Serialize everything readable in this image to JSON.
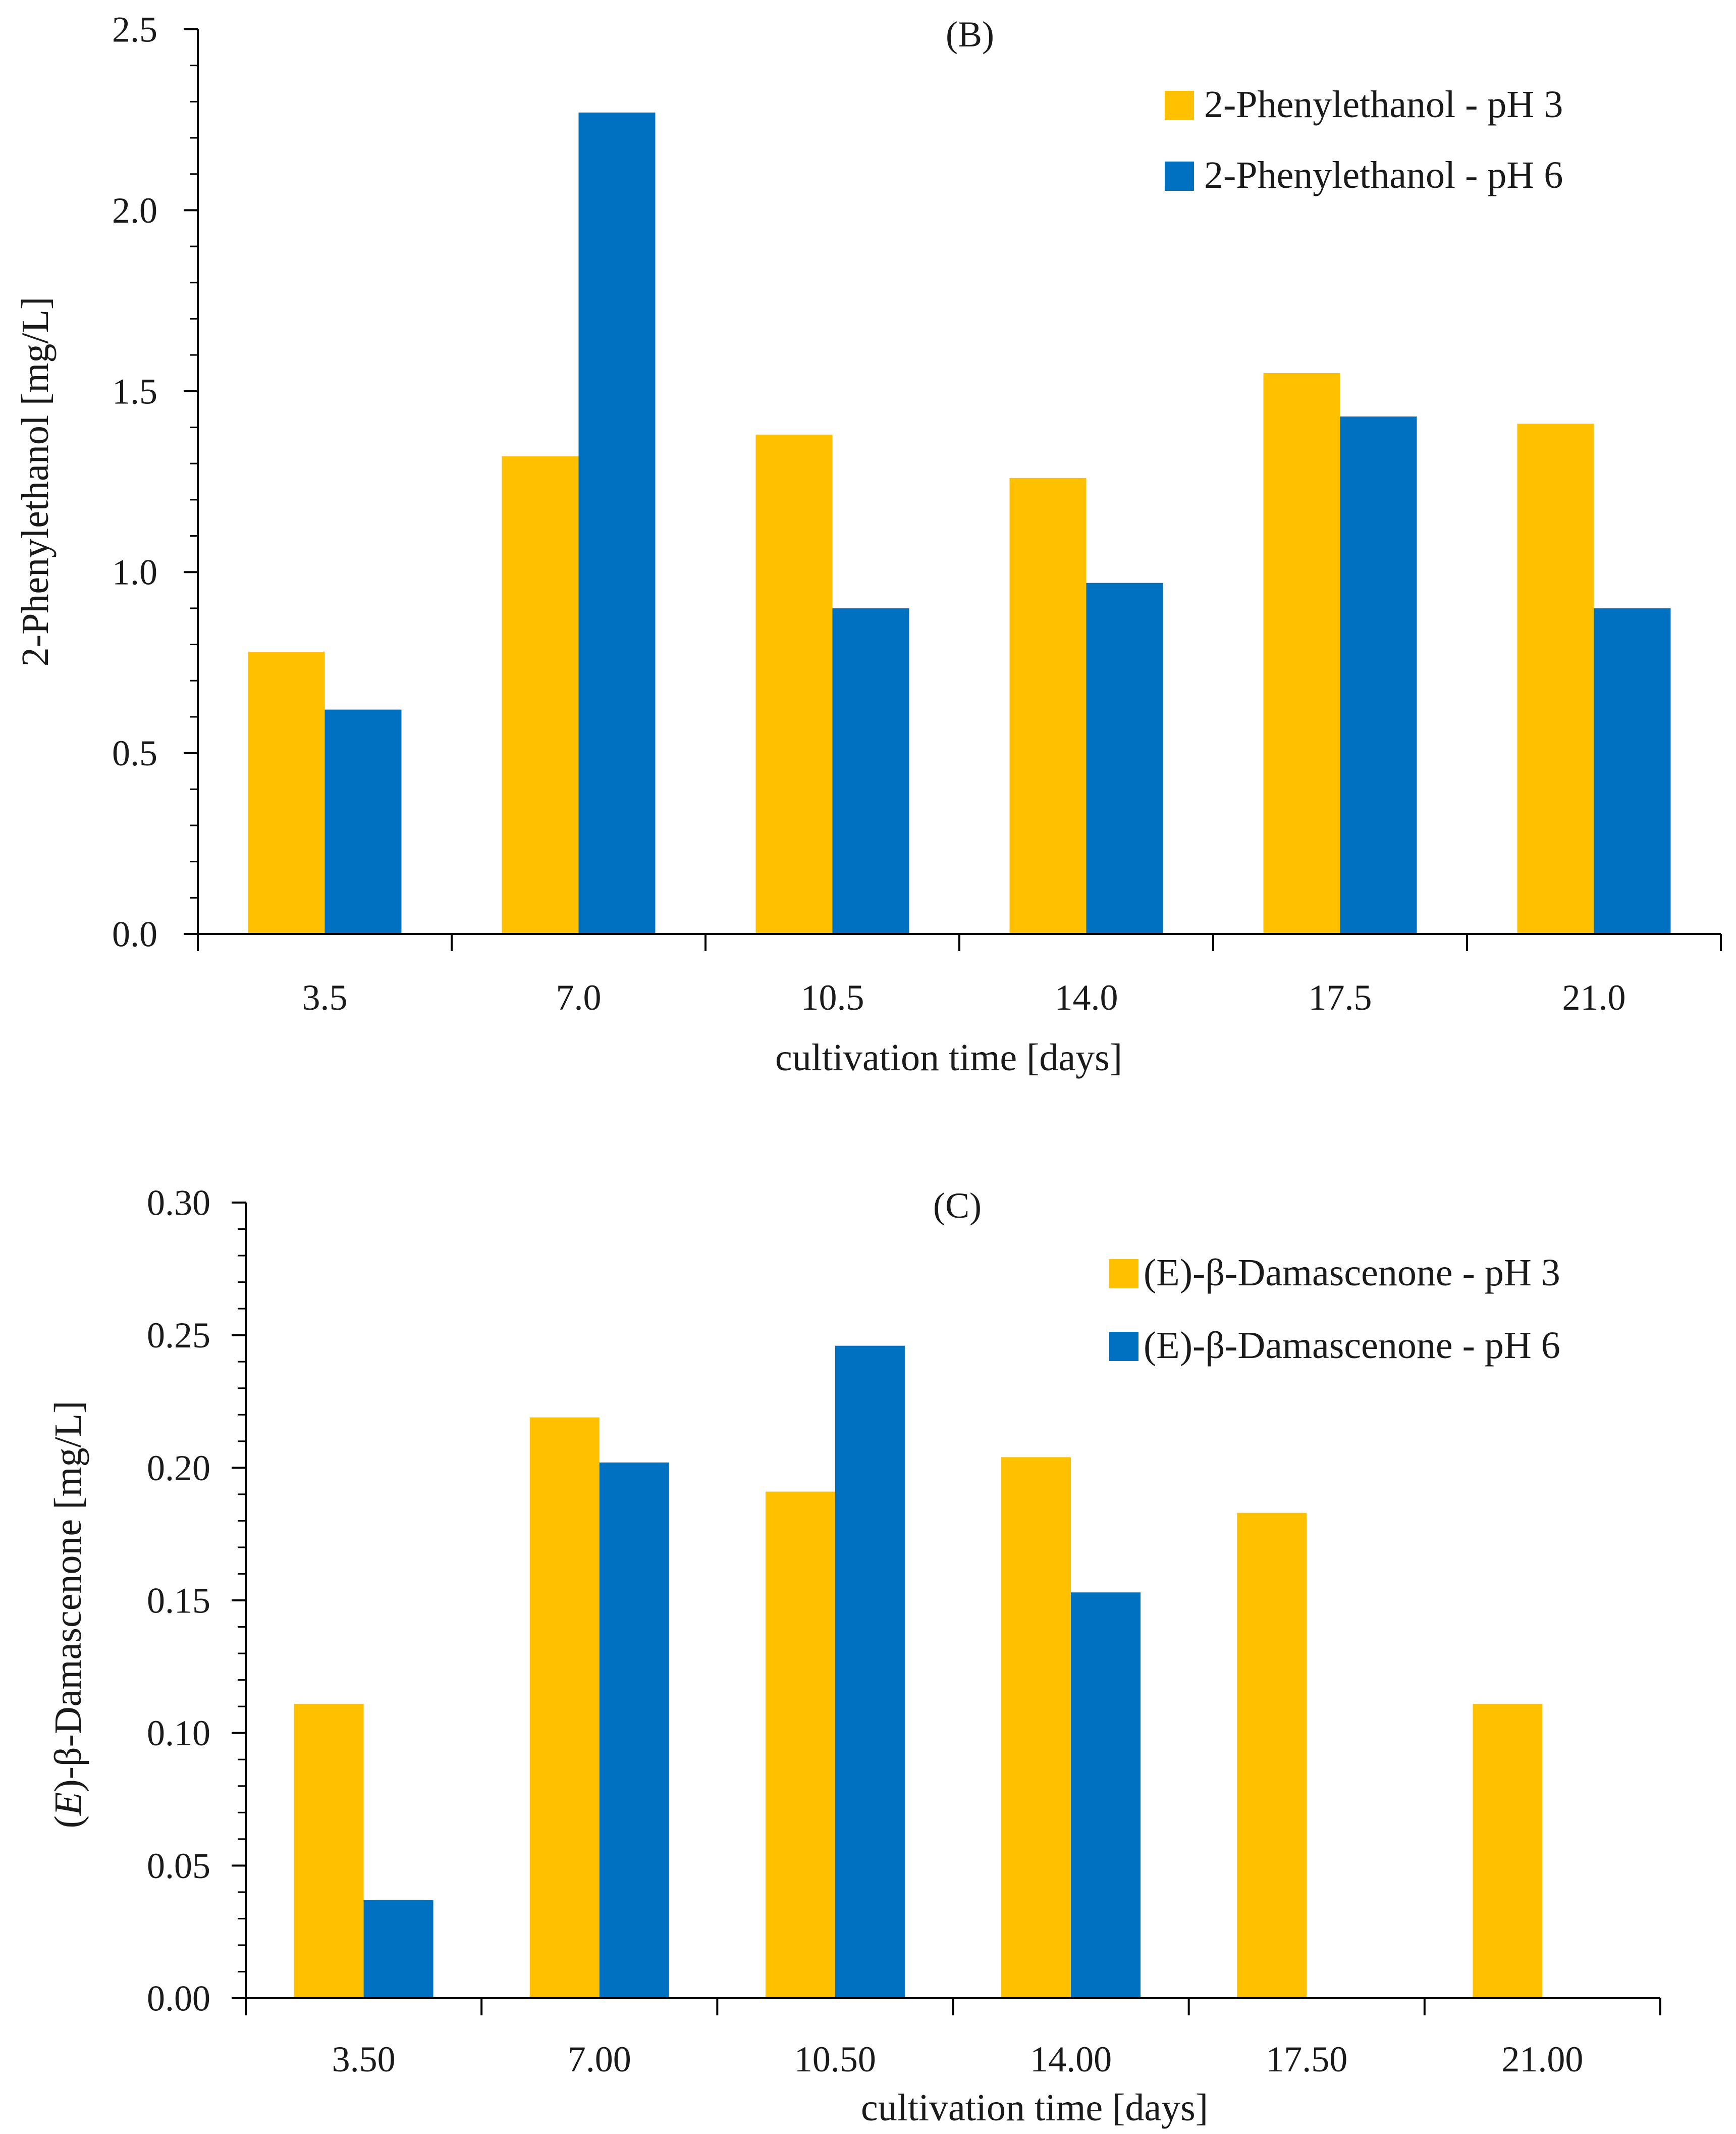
{
  "chart_data": [
    {
      "type": "bar",
      "title": "(B)",
      "xlabel": "cultivation time [days]",
      "ylabel": "2-Phenylethanol [mg/L]",
      "ylim": [
        0,
        2.5
      ],
      "yticks": [
        "0.0",
        "0.5",
        "1.0",
        "1.5",
        "2.0",
        "2.5"
      ],
      "categories": [
        "3.5",
        "7.0",
        "10.5",
        "14.0",
        "17.5",
        "21.0"
      ],
      "legend_position": "top-right",
      "series": [
        {
          "name": "2-Phenylethanol - pH 3",
          "color": "#FFC000",
          "values": [
            0.78,
            1.32,
            1.38,
            1.26,
            1.55,
            1.41
          ]
        },
        {
          "name": "2-Phenylethanol - pH 6",
          "color": "#0070C0",
          "values": [
            0.62,
            2.27,
            0.9,
            0.97,
            1.43,
            0.9
          ]
        }
      ]
    },
    {
      "type": "bar",
      "title": "(C)",
      "xlabel": "cultivation time [days]",
      "ylabel_prefix": "(",
      "ylabel_italic": "E",
      "ylabel_rest": ")-β-Damascenone [mg/L]",
      "ylim": [
        0,
        0.3
      ],
      "yticks": [
        "0.00",
        "0.05",
        "0.10",
        "0.15",
        "0.20",
        "0.25",
        "0.30"
      ],
      "categories": [
        "3.50",
        "7.00",
        "10.50",
        "14.00",
        "17.50",
        "21.00"
      ],
      "legend_position": "top-right",
      "series": [
        {
          "name": "(E)-β-Damascenone - pH 3",
          "color": "#FFC000",
          "values": [
            0.111,
            0.219,
            0.191,
            0.204,
            0.183,
            0.111
          ]
        },
        {
          "name": "(E)-β-Damascenone - pH 6",
          "color": "#0070C0",
          "values": [
            0.037,
            0.202,
            0.246,
            0.153,
            0,
            0
          ]
        }
      ]
    }
  ]
}
